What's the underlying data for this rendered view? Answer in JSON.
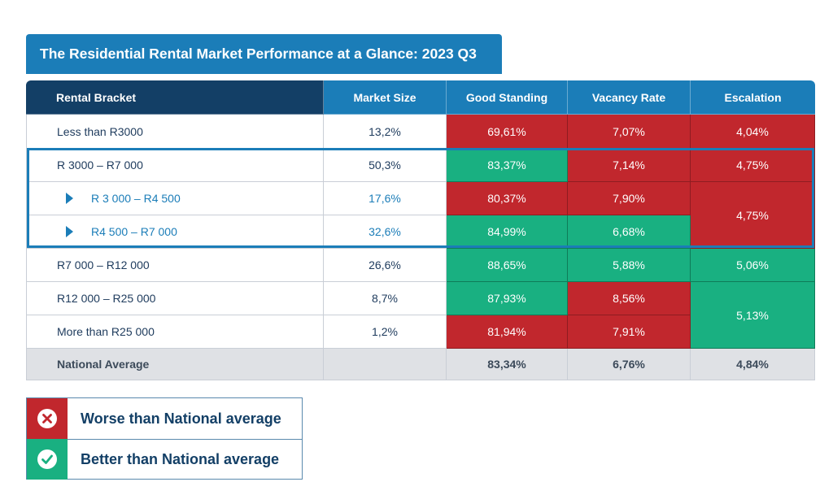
{
  "title": "The Residential Rental Market Performance at a Glance: 2023 Q3",
  "colors": {
    "worse": "#c1272d",
    "better": "#19b081",
    "header_dark": "#133f66",
    "header_blue": "#1b7db8"
  },
  "table": {
    "headers": [
      "Rental Bracket",
      "Market Size",
      "Good Standing",
      "Vacancy Rate",
      "Escalation"
    ],
    "rows": [
      {
        "bracket": "Less than R3000",
        "market_size": "13,2%",
        "good_standing": "69,61%",
        "vacancy_rate": "7,07%",
        "escalation": "4,04%"
      },
      {
        "bracket": "R 3000 – R7 000",
        "market_size": "50,3%",
        "good_standing": "83,37%",
        "vacancy_rate": "7,14%",
        "escalation": "4,75%"
      },
      {
        "bracket": "R 3 000 – R4 500",
        "market_size": "17,6%",
        "good_standing": "80,37%",
        "vacancy_rate": "7,90%",
        "escalation": "4,75%"
      },
      {
        "bracket": "R4 500 – R7 000",
        "market_size": "32,6%",
        "good_standing": "84,99%",
        "vacancy_rate": "6,68%"
      },
      {
        "bracket": "R7 000 – R12 000",
        "market_size": "26,6%",
        "good_standing": "88,65%",
        "vacancy_rate": "5,88%",
        "escalation": "5,06%"
      },
      {
        "bracket": "R12 000 – R25 000",
        "market_size": "8,7%",
        "good_standing": "87,93%",
        "vacancy_rate": "8,56%",
        "escalation": "5,13%"
      },
      {
        "bracket": "More than R25 000",
        "market_size": "1,2%",
        "good_standing": "81,94%",
        "vacancy_rate": "7,91%"
      }
    ],
    "average": {
      "bracket": "National Average",
      "market_size": "",
      "good_standing": "83,34%",
      "vacancy_rate": "6,76%",
      "escalation": "4,84%"
    }
  },
  "legend": [
    {
      "icon": "cross-icon",
      "label": "Worse than National average"
    },
    {
      "icon": "check-icon",
      "label": "Better than National average"
    }
  ]
}
